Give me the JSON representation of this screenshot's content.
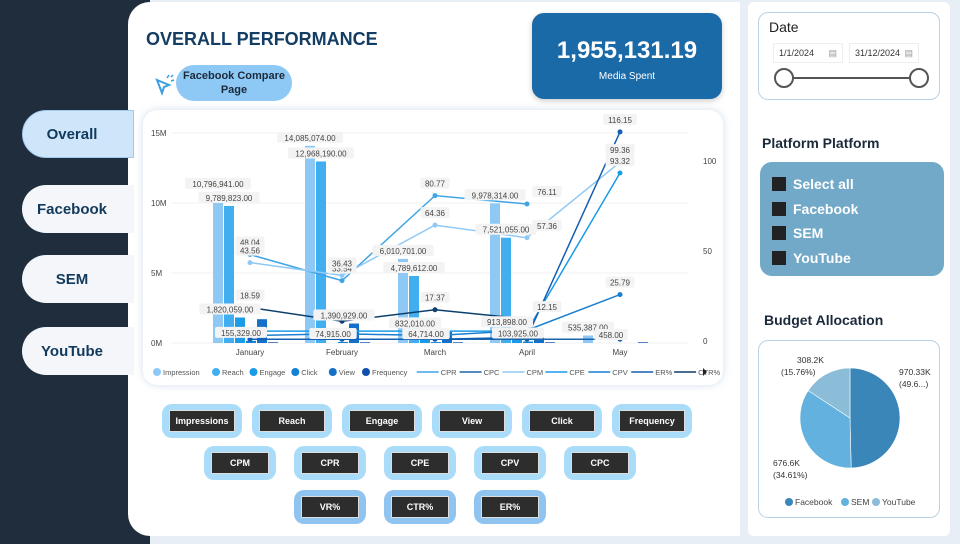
{
  "nav": {
    "items": [
      {
        "label": "Overall",
        "active": true
      },
      {
        "label": "Facebook"
      },
      {
        "label": "SEM"
      },
      {
        "label": "YouTube"
      }
    ]
  },
  "header": {
    "title": "OVERALL PERFORMANCE",
    "compare_button": "Facebook Compare Page",
    "compare_icon": "cursor-click-icon"
  },
  "kpi": {
    "value": "1,955,131.19",
    "label": "Media Spent"
  },
  "chart_data": {
    "type": "bar+line",
    "categories": [
      "January",
      "February",
      "March",
      "April",
      "May"
    ],
    "left_axis": {
      "ticks": [
        "0M",
        "5M",
        "10M",
        "15M"
      ],
      "range": [
        0,
        15000000
      ]
    },
    "right_axis": {
      "ticks": [
        "0",
        "50",
        "100"
      ],
      "range": [
        0,
        115
      ]
    },
    "bar_series": [
      {
        "name": "Impression",
        "color": "#8ec9f6",
        "values": [
          10796941,
          14085074,
          6010701,
          9978314,
          535387
        ],
        "labels": [
          "10,796,941.00",
          "14,085,074.00",
          "6,010,701.00",
          "9,978,314.00",
          "535,387.00"
        ]
      },
      {
        "name": "Reach",
        "color": "#41aef0",
        "values": [
          9789823,
          12968190,
          4789612,
          7521055,
          0
        ],
        "labels": [
          "9,789,823.00",
          "12,968,190.00",
          "4,789,612.00",
          "7,521,055.00",
          ""
        ]
      },
      {
        "name": "Engage",
        "color": "#1a9be8",
        "values": [
          1820059,
          0,
          832010,
          913898,
          0
        ],
        "labels": [
          "1,820,059.00",
          "",
          "832,010.00",
          "913,898.00",
          ""
        ]
      },
      {
        "name": "Click",
        "color": "#1382d6",
        "values": [
          155329,
          74915,
          64714,
          103925,
          458
        ],
        "labels": [
          "155,329.00",
          "74,915.00",
          "64,714.00",
          "103,925.00",
          "458.00"
        ]
      },
      {
        "name": "View",
        "color": "#1470c8",
        "values": [
          1700000,
          1390929,
          800000,
          600000,
          0
        ],
        "labels": [
          "",
          "1,390,929.00",
          "",
          "",
          ""
        ]
      },
      {
        "name": "Frequency",
        "color": "#0f4fb0",
        "values": [
          50000,
          50000,
          50000,
          50000,
          50000
        ],
        "labels": [
          "",
          "",
          "",
          "",
          ""
        ]
      }
    ],
    "line_series": [
      {
        "name": "CPR",
        "color": "#3fa4e6",
        "values": [
          48.04,
          33.54,
          80.77,
          76.11,
          null
        ]
      },
      {
        "name": "CPC",
        "color": "#1b64a8",
        "values": [
          1,
          1,
          1,
          1,
          1
        ]
      },
      {
        "name": "CPM",
        "color": "#8ec9f6",
        "values": [
          43.56,
          36.43,
          64.36,
          57.36,
          99.36
        ]
      },
      {
        "name": "CPE",
        "color": "#1a9be8",
        "values": [
          5.5,
          5.5,
          5.5,
          5.5,
          93.32
        ]
      },
      {
        "name": "CPV",
        "color": "#1a7fd0",
        "values": [
          3,
          4,
          3,
          6,
          25.79
        ]
      },
      {
        "name": "ER%",
        "color": "#135fb4",
        "values": [
          1,
          1,
          1,
          2,
          116.15
        ]
      },
      {
        "name": "CTR%",
        "color": "#0d3f6e",
        "values": [
          18.59,
          11,
          17.37,
          12.15,
          null
        ]
      }
    ],
    "line_labels": [
      {
        "series": "CPR",
        "labels": [
          "48.04",
          "33.54",
          "80.77",
          "76.11",
          ""
        ]
      },
      {
        "series": "CPM",
        "labels": [
          "43.56",
          "36.43",
          "64.36",
          "57.36",
          "99.36"
        ]
      },
      {
        "series": "CPE",
        "labels": [
          "",
          "",
          "",
          "",
          "93.32"
        ]
      },
      {
        "series": "CPV",
        "labels": [
          "",
          "",
          "",
          "",
          "25.79"
        ]
      },
      {
        "series": "ER%",
        "labels": [
          "",
          "",
          "",
          "",
          "116.15"
        ]
      },
      {
        "series": "CTR%",
        "labels": [
          "18.59",
          "",
          "17.37",
          "12.15",
          ""
        ]
      }
    ],
    "legend_position": "bottom"
  },
  "metric_buttons": {
    "row1": [
      "Impressions",
      "Reach",
      "Engage",
      "View",
      "Click",
      "Frequency"
    ],
    "row2": [
      "CPM",
      "CPR",
      "CPE",
      "CPV",
      "CPC"
    ],
    "row3": [
      "VR%",
      "CTR%",
      "ER%"
    ]
  },
  "date": {
    "title": "Date",
    "start": "1/1/2024",
    "end": "31/12/2024",
    "icon": "calendar-icon"
  },
  "platform": {
    "title": "Platform Platform",
    "items": [
      "Select all",
      "Facebook",
      "SEM",
      "YouTube"
    ]
  },
  "budget": {
    "title": "Budget Allocation",
    "slices": [
      {
        "name": "Facebook",
        "value": 970330,
        "label": "970.33K",
        "pct": "(49.6...)",
        "percent": 49.63,
        "color": "#3a86b8"
      },
      {
        "name": "SEM",
        "value": 676600,
        "label": "676.6K",
        "pct": "(34.61%)",
        "percent": 34.61,
        "color": "#62b1de"
      },
      {
        "name": "YouTube",
        "value": 308200,
        "label": "308.2K",
        "pct": "(15.76%)",
        "percent": 15.76,
        "color": "#8bbcd8"
      }
    ]
  }
}
